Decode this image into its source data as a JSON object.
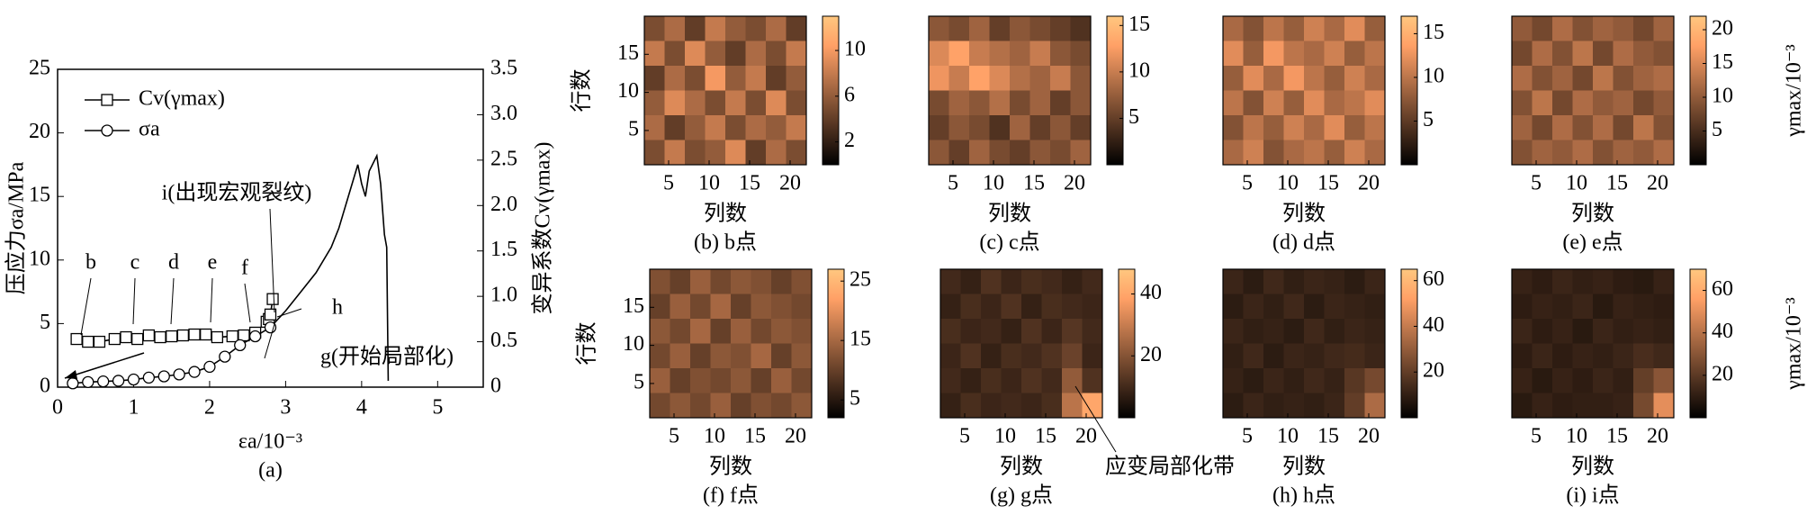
{
  "chart_data": [
    {
      "type": "line",
      "caption": "(a)",
      "xlabel": "εa/10⁻³",
      "ylabel": "压应力σa/MPa",
      "y2label": "变异系数Cv(γmax)",
      "xlim": [
        0,
        5.6
      ],
      "xticks": [
        0,
        1,
        2,
        3,
        4,
        5
      ],
      "ylim": [
        0,
        25
      ],
      "yticks": [
        0,
        5,
        10,
        15,
        20,
        25
      ],
      "y2lim": [
        0,
        3.5
      ],
      "y2ticks": [
        0,
        0.5,
        {
          "value": 1,
          "label": "1.0"
        },
        1.5,
        {
          "value": 2,
          "label": "2.0"
        },
        2.5,
        {
          "value": 3,
          "label": "3.0"
        },
        3.5
      ],
      "legend": "upper left",
      "series": [
        {
          "name": "Cv(γmax)",
          "axis": "y2",
          "marker": "square",
          "color": "#000000",
          "x": [
            0.25,
            0.4,
            0.55,
            0.75,
            0.9,
            1.05,
            1.2,
            1.35,
            1.5,
            1.65,
            1.8,
            1.95,
            2.1,
            2.3,
            2.45,
            2.6,
            2.75,
            2.78,
            2.8,
            2.83
          ],
          "values": [
            0.53,
            0.5,
            0.5,
            0.53,
            0.55,
            0.53,
            0.57,
            0.55,
            0.56,
            0.57,
            0.58,
            0.58,
            0.55,
            0.56,
            0.57,
            0.6,
            0.72,
            0.75,
            0.8,
            0.97
          ]
        },
        {
          "name": "σa",
          "marker": "circle",
          "markers": 14,
          "color": "#000000",
          "x": [
            0.2,
            0.4,
            0.6,
            0.8,
            1.0,
            1.2,
            1.4,
            1.6,
            1.8,
            2.0,
            2.2,
            2.4,
            2.6,
            2.8,
            3.0,
            3.2,
            3.4,
            3.6,
            3.7,
            3.8,
            3.9,
            3.95,
            4.0,
            4.05,
            4.1,
            4.2,
            4.25,
            4.3,
            4.33,
            4.35
          ],
          "values": [
            0.3,
            0.4,
            0.45,
            0.5,
            0.6,
            0.75,
            0.85,
            1.0,
            1.2,
            1.6,
            2.4,
            3.3,
            4.0,
            4.7,
            6.0,
            7.5,
            9.0,
            11,
            12.5,
            14.5,
            16.5,
            17.5,
            16,
            15,
            17,
            18.2,
            16,
            12,
            11,
            0.5
          ]
        }
      ],
      "annotations": [
        "b",
        "c",
        "d",
        "e",
        "f",
        "i(出现宏观裂纹)",
        "h",
        "g(开始局部化)"
      ]
    },
    {
      "type": "heatmap",
      "caption": "(b) b点",
      "xlabel": "列数",
      "ylabel": "行数",
      "xlim": [
        2,
        22
      ],
      "xticks": [
        5,
        10,
        15,
        20
      ],
      "ylim": [
        0.5,
        20
      ],
      "yticks": [
        5,
        10,
        15
      ],
      "clim": [
        0,
        13
      ],
      "cticks": [
        2,
        6,
        10
      ],
      "values": [
        [
          5,
          7,
          4,
          8,
          6,
          5,
          7,
          4
        ],
        [
          8,
          5,
          9,
          6,
          4,
          7,
          5,
          8
        ],
        [
          4,
          7,
          5,
          10,
          6,
          8,
          4,
          6
        ],
        [
          6,
          9,
          7,
          5,
          8,
          5,
          9,
          5
        ],
        [
          7,
          4,
          6,
          8,
          5,
          7,
          6,
          8
        ],
        [
          5,
          8,
          5,
          6,
          9,
          4,
          7,
          5
        ]
      ]
    },
    {
      "type": "heatmap",
      "caption": "(c) c点",
      "xlabel": "列数",
      "xlim": [
        2,
        22
      ],
      "xticks": [
        5,
        10,
        15,
        20
      ],
      "ylim": [
        0.5,
        20
      ],
      "clim": [
        0,
        16
      ],
      "cticks": [
        5,
        10,
        15
      ],
      "values": [
        [
          7,
          6,
          8,
          5,
          7,
          6,
          5,
          4
        ],
        [
          11,
          13,
          10,
          9,
          8,
          10,
          7,
          6
        ],
        [
          12,
          10,
          13,
          11,
          9,
          8,
          10,
          7
        ],
        [
          6,
          8,
          7,
          9,
          6,
          8,
          5,
          7
        ],
        [
          5,
          7,
          6,
          4,
          8,
          5,
          7,
          5
        ],
        [
          7,
          5,
          8,
          6,
          5,
          7,
          6,
          8
        ]
      ]
    },
    {
      "type": "heatmap",
      "caption": "(d) d点",
      "xlabel": "列数",
      "xlim": [
        2,
        22
      ],
      "xticks": [
        5,
        10,
        15,
        20
      ],
      "ylim": [
        0.5,
        20
      ],
      "clim": [
        0,
        17
      ],
      "cticks": [
        5,
        10,
        15
      ],
      "values": [
        [
          9,
          7,
          10,
          8,
          11,
          9,
          12,
          8
        ],
        [
          12,
          8,
          13,
          10,
          9,
          11,
          8,
          10
        ],
        [
          8,
          12,
          9,
          13,
          10,
          8,
          11,
          9
        ],
        [
          10,
          7,
          11,
          8,
          12,
          9,
          10,
          12
        ],
        [
          7,
          10,
          8,
          11,
          9,
          12,
          8,
          10
        ],
        [
          9,
          11,
          7,
          9,
          10,
          8,
          11,
          9
        ]
      ]
    },
    {
      "type": "heatmap",
      "caption": "(e) e点",
      "xlabel": "列数",
      "colorbar_label": "γmax/10⁻³",
      "xlim": [
        2,
        22
      ],
      "xticks": [
        5,
        10,
        15,
        20
      ],
      "ylim": [
        0.5,
        20
      ],
      "clim": [
        0,
        22
      ],
      "cticks": [
        5,
        10,
        15,
        20
      ],
      "values": [
        [
          10,
          8,
          12,
          9,
          11,
          10,
          8,
          11
        ],
        [
          8,
          12,
          9,
          13,
          8,
          12,
          10,
          9
        ],
        [
          12,
          9,
          11,
          8,
          13,
          9,
          11,
          12
        ],
        [
          9,
          13,
          8,
          12,
          10,
          11,
          8,
          10
        ],
        [
          11,
          8,
          12,
          9,
          12,
          8,
          13,
          9
        ],
        [
          9,
          11,
          10,
          12,
          9,
          11,
          10,
          12
        ]
      ]
    },
    {
      "type": "heatmap",
      "caption": "(f) f点",
      "xlabel": "列数",
      "ylabel": "行数",
      "xlim": [
        2,
        22
      ],
      "xticks": [
        5,
        10,
        15,
        20
      ],
      "ylim": [
        0.5,
        20
      ],
      "yticks": [
        5,
        10,
        15
      ],
      "clim": [
        2,
        27
      ],
      "cticks": [
        5,
        15,
        25
      ],
      "values": [
        [
          12,
          10,
          14,
          11,
          13,
          12,
          10,
          12
        ],
        [
          10,
          14,
          11,
          15,
          10,
          13,
          12,
          11
        ],
        [
          13,
          11,
          15,
          10,
          14,
          11,
          13,
          12
        ],
        [
          11,
          14,
          10,
          13,
          12,
          15,
          10,
          13
        ],
        [
          14,
          10,
          12,
          11,
          13,
          10,
          14,
          11
        ],
        [
          11,
          13,
          11,
          14,
          10,
          12,
          11,
          13
        ]
      ]
    },
    {
      "type": "heatmap",
      "caption": "(g) g点",
      "xlabel": "列数",
      "annotation": "应变局部化带",
      "xlim": [
        2,
        22
      ],
      "xticks": [
        5,
        10,
        15,
        20
      ],
      "ylim": [
        0.5,
        20
      ],
      "clim": [
        0,
        48
      ],
      "cticks": [
        20,
        40
      ],
      "values": [
        [
          10,
          8,
          12,
          9,
          11,
          10,
          8,
          10
        ],
        [
          8,
          11,
          9,
          12,
          8,
          11,
          10,
          9
        ],
        [
          11,
          9,
          10,
          8,
          12,
          9,
          13,
          10
        ],
        [
          9,
          12,
          8,
          11,
          10,
          12,
          16,
          9
        ],
        [
          10,
          8,
          11,
          9,
          12,
          10,
          22,
          12
        ],
        [
          8,
          11,
          9,
          10,
          9,
          11,
          28,
          40
        ]
      ]
    },
    {
      "type": "heatmap",
      "caption": "(h) h点",
      "xlabel": "列数",
      "xlim": [
        2,
        22
      ],
      "xticks": [
        5,
        10,
        15,
        20
      ],
      "ylim": [
        0.5,
        20
      ],
      "clim": [
        0,
        65
      ],
      "cticks": [
        20,
        40,
        60
      ],
      "values": [
        [
          12,
          9,
          13,
          10,
          12,
          11,
          9,
          12
        ],
        [
          9,
          12,
          10,
          13,
          9,
          12,
          11,
          10
        ],
        [
          12,
          10,
          11,
          9,
          13,
          10,
          12,
          11
        ],
        [
          10,
          13,
          9,
          12,
          11,
          13,
          14,
          12
        ],
        [
          11,
          9,
          12,
          10,
          13,
          11,
          18,
          24
        ],
        [
          9,
          12,
          10,
          11,
          10,
          12,
          20,
          35
        ]
      ]
    },
    {
      "type": "heatmap",
      "caption": "(i) i点",
      "xlabel": "列数",
      "colorbar_label": "γmax/10⁻³",
      "xlim": [
        2,
        22
      ],
      "xticks": [
        5,
        10,
        15,
        20
      ],
      "ylim": [
        0.5,
        20
      ],
      "clim": [
        0,
        70
      ],
      "cticks": [
        20,
        40,
        60
      ],
      "values": [
        [
          12,
          10,
          13,
          11,
          12,
          10,
          9,
          12
        ],
        [
          10,
          12,
          11,
          13,
          9,
          12,
          11,
          10
        ],
        [
          13,
          10,
          12,
          9,
          13,
          11,
          12,
          11
        ],
        [
          10,
          13,
          10,
          12,
          11,
          13,
          16,
          14
        ],
        [
          12,
          9,
          12,
          10,
          13,
          11,
          22,
          30
        ],
        [
          9,
          12,
          10,
          11,
          11,
          12,
          26,
          50
        ]
      ]
    }
  ]
}
